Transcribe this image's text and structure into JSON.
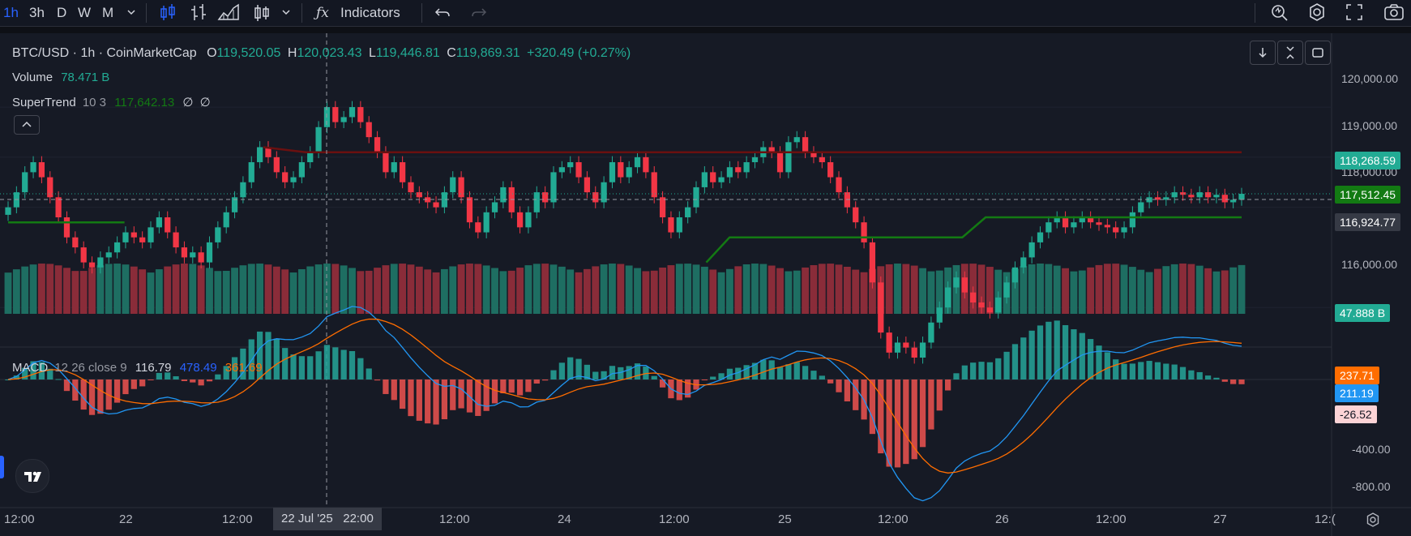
{
  "toolbar": {
    "intervals": [
      "1h",
      "3h",
      "D",
      "W",
      "M"
    ],
    "active_interval": "1h",
    "indicators_label": "Indicators"
  },
  "symbol": {
    "title": "BTC/USD · 1h · CoinMarketCap",
    "o_label": "O",
    "o": "119,520.05",
    "h_label": "H",
    "h": "120,023.43",
    "l_label": "L",
    "l": "119,446.81",
    "c_label": "C",
    "c": "119,869.31",
    "change": "+320.49 (+0.27%)"
  },
  "volume": {
    "label": "Volume",
    "value": "78.471 B",
    "last_tag": "47.888 B"
  },
  "supertrend": {
    "label": "SuperTrend",
    "params": "10 3",
    "value": "117,642.13",
    "extra1": "∅",
    "extra2": "∅"
  },
  "macd": {
    "label": "MACD",
    "params": "12 26 close 9",
    "v1": "116.79",
    "v2": "478.49",
    "v3": "361.69"
  },
  "price_axis": [
    "120,000.00",
    "119,000.00",
    "118,000.00",
    "116,000.00"
  ],
  "macd_axis": [
    "-400.00",
    "-800.00"
  ],
  "price_tags": {
    "last": "118,268.59",
    "supertrend": "117,512.45",
    "crosshair": "116,924.77"
  },
  "macd_tags": {
    "signal": "237.71",
    "macd": "211.19",
    "hist": "-26.52"
  },
  "time_axis": [
    "12:00",
    "22",
    "12:00",
    "12:00",
    "24",
    "12:00",
    "25",
    "12:00",
    "26",
    "12:00",
    "27",
    "12:("
  ],
  "crosshair_time": "22 Jul '25   22:00",
  "colors": {
    "up": "#22ab94",
    "down": "#f23645",
    "vol_up": "#1e6e62",
    "vol_down": "#8a2c39",
    "st_up": "#137a13",
    "st_down": "#6b1010",
    "macd_line": "#2962ff",
    "signal_line": "#ff6d00",
    "accent": "#2962ff"
  },
  "chart_data": {
    "type": "candlestick",
    "title": "BTC/USD · 1h · CoinMarketCap",
    "ylim": [
      115000,
      120600
    ],
    "closes": [
      118000,
      118300,
      118700,
      118900,
      118600,
      118200,
      117800,
      117400,
      117200,
      116900,
      116800,
      117000,
      117100,
      117300,
      117500,
      117400,
      117300,
      117600,
      117800,
      117500,
      117200,
      117000,
      117100,
      116900,
      117300,
      117600,
      117900,
      118200,
      118500,
      118900,
      119200,
      119000,
      118700,
      118500,
      118600,
      118900,
      119100,
      119600,
      120000,
      119700,
      119800,
      120000,
      119700,
      119400,
      119100,
      118700,
      118900,
      118500,
      118300,
      118200,
      118100,
      118000,
      118300,
      118600,
      118200,
      117700,
      117500,
      117900,
      118100,
      118400,
      117900,
      117600,
      117900,
      118300,
      118100,
      118700,
      118800,
      118900,
      118600,
      118300,
      118100,
      118500,
      118900,
      118600,
      118800,
      119000,
      118700,
      118200,
      117800,
      117500,
      117800,
      118000,
      118400,
      118700,
      118500,
      118600,
      118800,
      118700,
      118900,
      119000,
      119200,
      119100,
      118700,
      119300,
      119400,
      119100,
      119000,
      118900,
      118600,
      118300,
      118000,
      117700,
      117300,
      116500,
      115500,
      115100,
      115300,
      115200,
      115000,
      115300,
      115700,
      116000,
      116400,
      116600,
      116300,
      116100,
      116000,
      115900,
      116200,
      116500,
      116800,
      117000,
      117300,
      117500,
      117700,
      117800,
      117600,
      117700,
      117800,
      117700,
      117650,
      117600,
      117500,
      117600,
      117900,
      118100,
      118200,
      118150,
      118200,
      118300,
      118250,
      118200,
      118300,
      118200,
      118250,
      118100,
      118150,
      118268.59
    ],
    "supertrend_up": [
      117700,
      117700,
      117700,
      117700,
      117700,
      117700,
      null,
      null,
      null,
      null,
      null,
      null,
      null,
      null,
      null,
      null,
      null,
      null,
      null,
      null,
      null,
      null,
      null,
      null,
      null,
      null,
      null,
      null,
      null,
      null,
      116900,
      117400,
      117400,
      117400,
      117400,
      117400,
      117400,
      117400,
      117400,
      117400,
      117400,
      117400,
      117800,
      117800,
      117800,
      117800,
      117800,
      117800,
      117800,
      117800,
      117800,
      117800,
      117800,
      117800
    ],
    "supertrend_down": [
      null,
      null,
      null,
      null,
      null,
      null,
      119200,
      119100,
      119100,
      119100,
      119100,
      119100,
      119100,
      119100,
      119100,
      119100,
      119100,
      119100,
      119100,
      119100,
      119100,
      119100,
      119100,
      119100,
      119100,
      119100,
      119100,
      119100,
      119100,
      119100
    ],
    "macd_hist_last": -26.52,
    "macd_last": 211.19,
    "signal_last": 237.71
  }
}
